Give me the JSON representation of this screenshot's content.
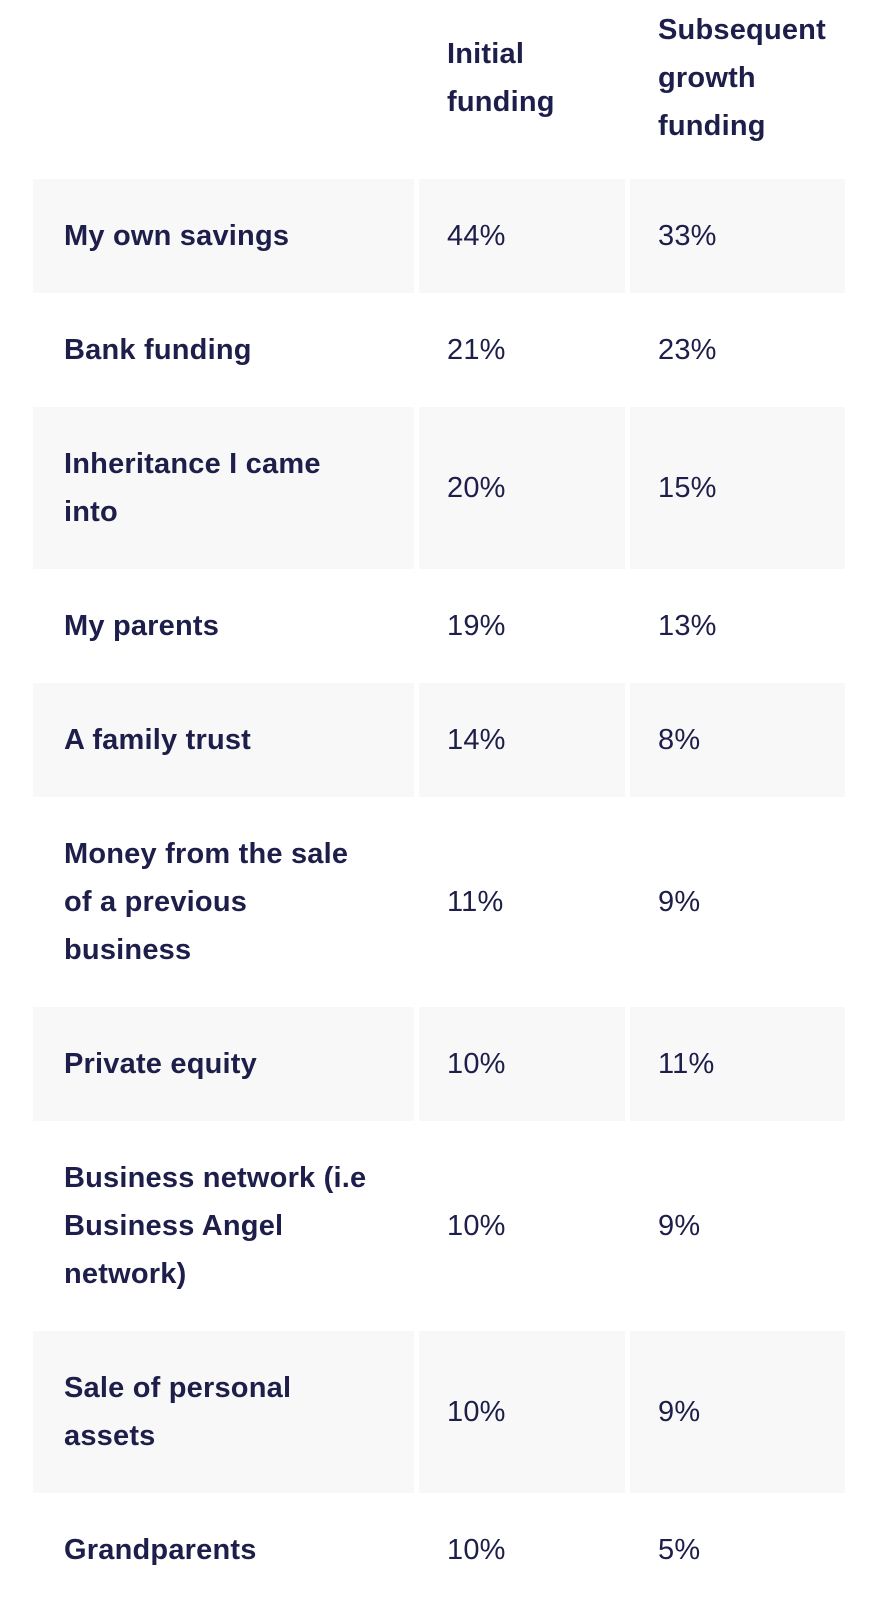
{
  "table": {
    "colors": {
      "text": "#1e1e4b",
      "stripe_background": "#f8f8f8",
      "page_background": "#ffffff"
    },
    "columns": {
      "initial": "Initial\nfunding",
      "subsequent": "Subsequent\ngrowth\nfunding"
    },
    "rows": [
      {
        "label": "My own savings",
        "initial": "44%",
        "subsequent": "33%"
      },
      {
        "label": "Bank funding",
        "initial": "21%",
        "subsequent": "23%"
      },
      {
        "label": "Inheritance I came\ninto",
        "initial": "20%",
        "subsequent": "15%"
      },
      {
        "label": "My parents",
        "initial": "19%",
        "subsequent": "13%"
      },
      {
        "label": "A family trust",
        "initial": "14%",
        "subsequent": "8%"
      },
      {
        "label": "Money from the sale\nof a previous\nbusiness",
        "initial": "11%",
        "subsequent": "9%"
      },
      {
        "label": "Private equity",
        "initial": "10%",
        "subsequent": "11%"
      },
      {
        "label": "Business network (i.e\nBusiness Angel\nnetwork)",
        "initial": "10%",
        "subsequent": "9%"
      },
      {
        "label": "Sale of personal\nassets",
        "initial": "10%",
        "subsequent": "9%"
      },
      {
        "label": "Grandparents",
        "initial": "10%",
        "subsequent": "5%"
      }
    ]
  },
  "chart_data": {
    "type": "table",
    "title": "",
    "categories": [
      "My own savings",
      "Bank funding",
      "Inheritance I came into",
      "My parents",
      "A family trust",
      "Money from the sale of a previous business",
      "Private equity",
      "Business network (i.e Business Angel network)",
      "Sale of personal assets",
      "Grandparents"
    ],
    "series": [
      {
        "name": "Initial funding",
        "values": [
          44,
          21,
          20,
          19,
          14,
          11,
          10,
          10,
          10,
          10
        ]
      },
      {
        "name": "Subsequent growth funding",
        "values": [
          33,
          23,
          15,
          13,
          8,
          9,
          11,
          9,
          9,
          5
        ]
      }
    ],
    "unit": "%"
  }
}
